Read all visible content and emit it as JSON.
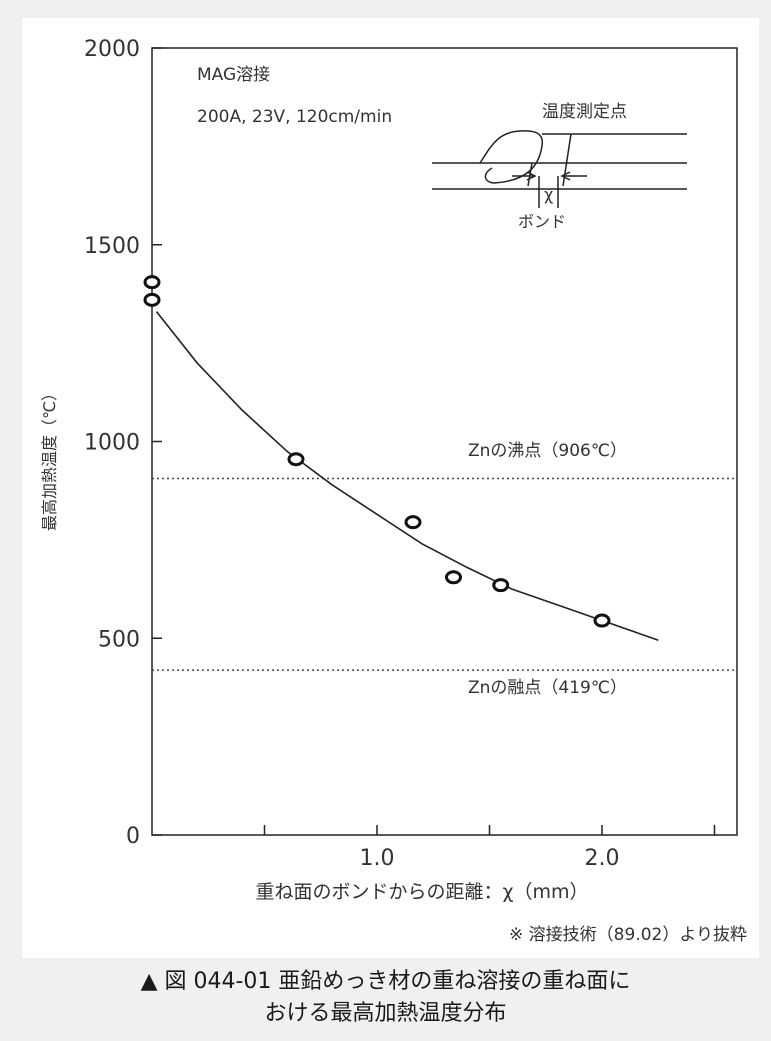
{
  "chart_data": {
    "type": "scatter",
    "ylabel": "最高加熱温度（℃）",
    "xlabel": "重ね面のボンドからの距離：χ（mm）",
    "xlim": [
      0,
      2.6
    ],
    "ylim": [
      0,
      2000
    ],
    "x_ticks": [
      0.5,
      1.0,
      1.5,
      2.0,
      2.5
    ],
    "x_tick_labels": [
      {
        "value": 1.0,
        "label": "1.0"
      },
      {
        "value": 2.0,
        "label": "2.0"
      }
    ],
    "y_ticks": [
      0,
      500,
      1000,
      1500,
      2000
    ],
    "y_tick_labels": [
      "0",
      "500",
      "1000",
      "1500",
      "2000"
    ],
    "points": [
      {
        "x": 0.0,
        "y": 1405
      },
      {
        "x": 0.0,
        "y": 1360
      },
      {
        "x": 0.64,
        "y": 955
      },
      {
        "x": 1.16,
        "y": 795
      },
      {
        "x": 1.34,
        "y": 655
      },
      {
        "x": 1.55,
        "y": 635
      },
      {
        "x": 2.0,
        "y": 545
      }
    ],
    "fit_curve": [
      {
        "x": 0.02,
        "y": 1330
      },
      {
        "x": 0.2,
        "y": 1200
      },
      {
        "x": 0.4,
        "y": 1080
      },
      {
        "x": 0.6,
        "y": 975
      },
      {
        "x": 0.8,
        "y": 890
      },
      {
        "x": 1.0,
        "y": 815
      },
      {
        "x": 1.2,
        "y": 740
      },
      {
        "x": 1.4,
        "y": 680
      },
      {
        "x": 1.6,
        "y": 625
      },
      {
        "x": 1.8,
        "y": 585
      },
      {
        "x": 2.0,
        "y": 545
      },
      {
        "x": 2.25,
        "y": 495
      }
    ],
    "reference_lines": [
      {
        "y": 906,
        "label": "Znの沸点（906℃）"
      },
      {
        "y": 419,
        "label": "Znの融点（419℃）"
      }
    ],
    "annotations": [
      "MAG溶接",
      "200A, 23V, 120cm/min"
    ],
    "grid": false
  },
  "inset": {
    "measure_label": "温度測定点",
    "x_label": "χ",
    "bond_label": "ボンド"
  },
  "source_note": "※ 溶接技術（89.02）より抜粋",
  "caption": {
    "line1": "▲ 図 044-01 亜鉛めっき材の重ね溶接の重ね面に",
    "line2": "おける最高加熱温度分布"
  }
}
